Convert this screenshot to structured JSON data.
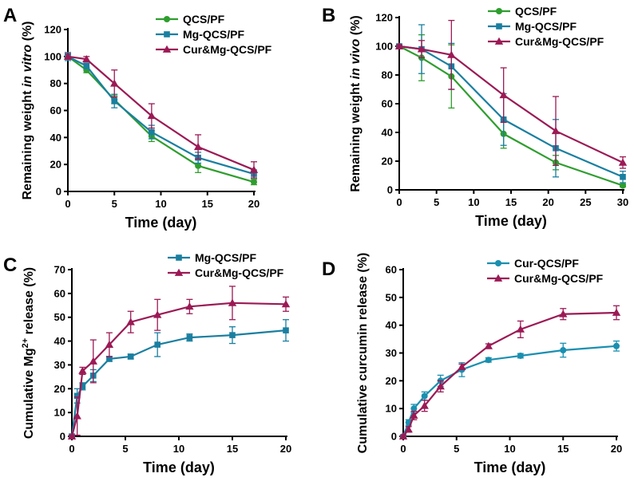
{
  "colors": {
    "QCS/PF": "#2e9e2e",
    "Mg-QCS/PF": "#1a7fa0",
    "Cur&Mg-QCS/PF": "#9b1a55",
    "Cur-QCS/PF": "#1a8fb0"
  },
  "chart_data": [
    {
      "panel": "A",
      "type": "line",
      "xlabel": "Time (day)",
      "ylabel_parts": [
        {
          "text": "Remaining weight ",
          "italic": false
        },
        {
          "text": "in vitro",
          "italic": true
        },
        {
          "text": " (%)",
          "italic": false
        }
      ],
      "xlim": [
        0,
        20
      ],
      "ylim": [
        0,
        120
      ],
      "xticks": [
        0,
        5,
        10,
        15,
        20
      ],
      "yticks": [
        0,
        20,
        40,
        60,
        80,
        100,
        120
      ],
      "series": [
        {
          "name": "QCS/PF",
          "marker": "circle",
          "x": [
            0,
            2,
            5,
            9,
            14,
            20
          ],
          "values": [
            100,
            90,
            68,
            41,
            19,
            7
          ],
          "err": [
            2,
            2,
            3,
            4,
            5,
            2
          ]
        },
        {
          "name": "Mg-QCS/PF",
          "marker": "square",
          "x": [
            0,
            2,
            5,
            9,
            14,
            20
          ],
          "values": [
            100,
            93,
            67,
            44,
            25,
            13
          ],
          "err": [
            3,
            2,
            5,
            5,
            4,
            3
          ]
        },
        {
          "name": "Cur&Mg-QCS/PF",
          "marker": "triangle",
          "x": [
            0,
            2,
            5,
            9,
            14,
            20
          ],
          "values": [
            100,
            98,
            80,
            56,
            33,
            16
          ],
          "err": [
            2,
            2,
            10,
            9,
            9,
            6
          ]
        }
      ]
    },
    {
      "panel": "B",
      "type": "line",
      "xlabel": "Time (day)",
      "ylabel_parts": [
        {
          "text": "Remaining weight ",
          "italic": false
        },
        {
          "text": "in vivo",
          "italic": true
        },
        {
          "text": " (%)",
          "italic": false
        }
      ],
      "xlim": [
        0,
        30
      ],
      "ylim": [
        0,
        120
      ],
      "xticks": [
        0,
        5,
        10,
        15,
        20,
        25,
        30
      ],
      "yticks": [
        0,
        20,
        40,
        60,
        80,
        100,
        120
      ],
      "series": [
        {
          "name": "QCS/PF",
          "marker": "circle",
          "x": [
            0,
            3,
            7,
            14,
            21,
            30
          ],
          "values": [
            100,
            92,
            79,
            39,
            19,
            3
          ],
          "err": [
            1,
            16,
            22,
            10,
            5,
            1
          ]
        },
        {
          "name": "Mg-QCS/PF",
          "marker": "square",
          "x": [
            0,
            3,
            7,
            14,
            21,
            30
          ],
          "values": [
            100,
            98,
            86,
            49,
            29,
            9
          ],
          "err": [
            1,
            17,
            16,
            18,
            20,
            4
          ]
        },
        {
          "name": "Cur&Mg-QCS/PF",
          "marker": "triangle",
          "x": [
            0,
            3,
            7,
            14,
            21,
            30
          ],
          "values": [
            100,
            98,
            94,
            66,
            41,
            19
          ],
          "err": [
            1,
            6,
            24,
            19,
            24,
            4
          ]
        }
      ]
    },
    {
      "panel": "C",
      "type": "line",
      "xlabel": "Time (day)",
      "ylabel_parts": [
        {
          "text": "Cumulative Mg",
          "italic": false
        },
        {
          "text": "2+",
          "sup": true
        },
        {
          "text": " release (%)",
          "italic": false
        }
      ],
      "xlim": [
        0,
        20
      ],
      "ylim": [
        0,
        70
      ],
      "xticks": [
        0,
        5,
        10,
        15,
        20
      ],
      "yticks": [
        0,
        10,
        20,
        30,
        40,
        50,
        60,
        70
      ],
      "series": [
        {
          "name": "Mg-QCS/PF",
          "marker": "square",
          "x": [
            0,
            0.5,
            1,
            2,
            3.5,
            5.5,
            8,
            11,
            15,
            20
          ],
          "values": [
            0,
            17,
            21,
            25.5,
            32.5,
            33.5,
            38.5,
            41.5,
            42.5,
            44.5
          ],
          "err": [
            0.5,
            3,
            1.5,
            2.5,
            1,
            1,
            5,
            1.5,
            3.5,
            4.5
          ]
        },
        {
          "name": "Cur&Mg-QCS/PF",
          "marker": "triangle",
          "x": [
            0,
            0.5,
            1,
            2,
            3.5,
            5.5,
            8,
            11,
            15,
            20
          ],
          "values": [
            0,
            8.5,
            27.5,
            31.5,
            38.5,
            48,
            51,
            54.5,
            56,
            55.5
          ],
          "err": [
            0.5,
            8,
            1.5,
            9,
            5,
            4.5,
            6.5,
            3,
            7,
            3
          ]
        }
      ]
    },
    {
      "panel": "D",
      "type": "line",
      "xlabel": "Time (day)",
      "ylabel_parts": [
        {
          "text": "Cumulative curcumin release (%)",
          "italic": false
        }
      ],
      "xlim": [
        0,
        20
      ],
      "ylim": [
        0,
        60
      ],
      "xticks": [
        0,
        5,
        10,
        15,
        20
      ],
      "yticks": [
        0,
        10,
        20,
        30,
        40,
        50,
        60
      ],
      "series": [
        {
          "name": "Cur-QCS/PF",
          "marker": "circle",
          "x": [
            0,
            0.5,
            1,
            2,
            3.5,
            5.5,
            8,
            11,
            15,
            20
          ],
          "values": [
            0,
            5,
            10,
            14.5,
            20,
            24,
            27.5,
            29,
            31,
            32.5
          ],
          "err": [
            0.5,
            1,
            1.5,
            1.5,
            2,
            2.5,
            0.8,
            0.8,
            2.5,
            1.8
          ]
        },
        {
          "name": "Cur&Mg-QCS/PF",
          "marker": "triangle",
          "x": [
            0,
            0.5,
            1,
            2,
            3.5,
            5.5,
            8,
            11,
            15,
            20
          ],
          "values": [
            0,
            2.5,
            7.5,
            11,
            18,
            25,
            32.5,
            38.5,
            44,
            44.5
          ],
          "err": [
            0.5,
            1,
            1.5,
            2,
            2,
            1,
            0.8,
            3,
            2,
            2.5
          ]
        }
      ]
    }
  ]
}
